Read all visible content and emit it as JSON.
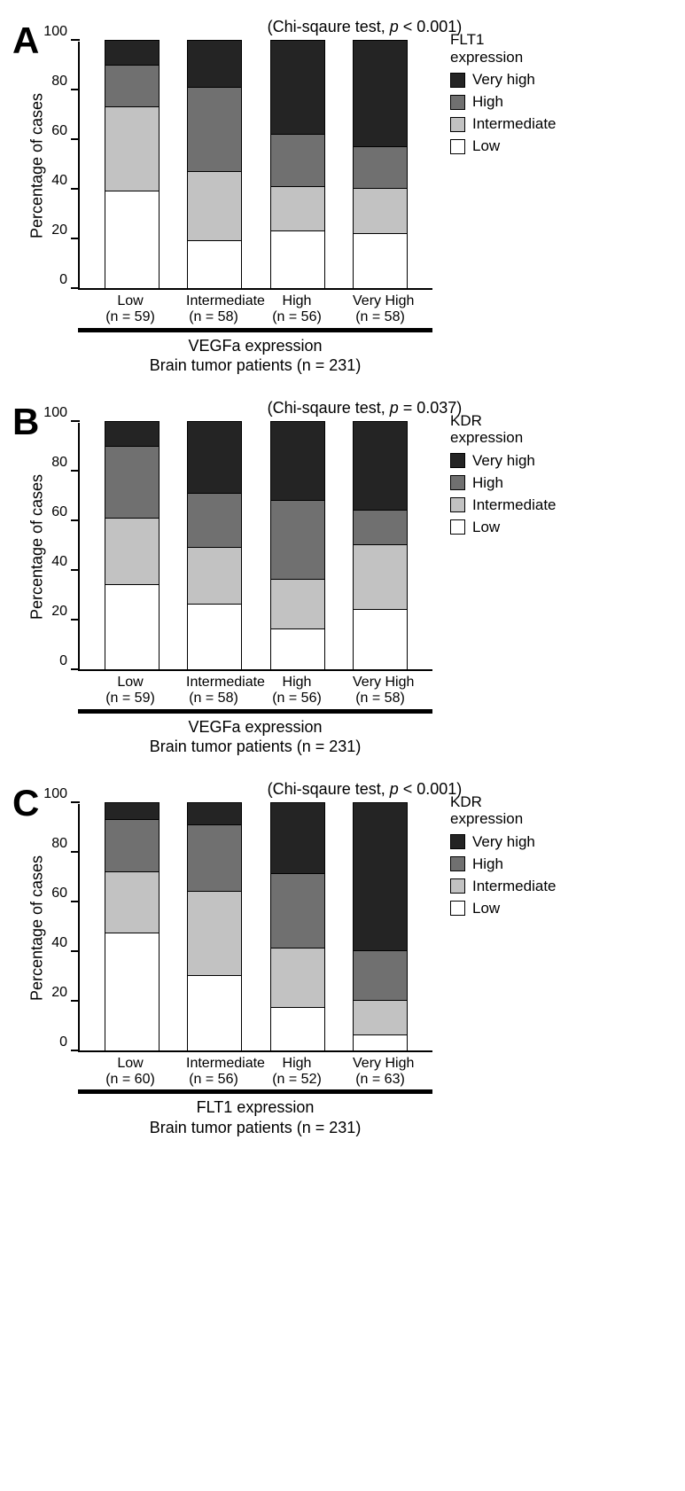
{
  "colors": {
    "very_high": "#242424",
    "high": "#707070",
    "intermediate": "#c2c2c2",
    "low": "#ffffff"
  },
  "yaxis": {
    "label": "Percentage of cases",
    "max": 100,
    "ticks": [
      0,
      20,
      40,
      60,
      80,
      100
    ]
  },
  "panels": [
    {
      "id": "A",
      "stat_prefix": "(Chi-sqaure test, ",
      "stat_p": "p",
      "stat_suffix": " < 0.001)",
      "legend_title_line1": "FLT1",
      "legend_title_line2": "expression",
      "xaxis_title_line1": "VEGFa expression",
      "xaxis_title_line2": "Brain tumor patients (n = 231)",
      "legend_items": [
        {
          "label": "Very high",
          "color": "#242424"
        },
        {
          "label": "High",
          "color": "#707070"
        },
        {
          "label": "Intermediate",
          "color": "#c2c2c2"
        },
        {
          "label": "Low",
          "color": "#ffffff"
        }
      ],
      "bars": [
        {
          "label_line1": "Low",
          "label_line2": "(n = 59)",
          "segments": [
            {
              "color": "#242424",
              "value": 10
            },
            {
              "color": "#707070",
              "value": 17
            },
            {
              "color": "#c2c2c2",
              "value": 34
            },
            {
              "color": "#ffffff",
              "value": 39
            }
          ]
        },
        {
          "label_line1": "Intermediate",
          "label_line2": "(n = 58)",
          "segments": [
            {
              "color": "#242424",
              "value": 19
            },
            {
              "color": "#707070",
              "value": 34
            },
            {
              "color": "#c2c2c2",
              "value": 28
            },
            {
              "color": "#ffffff",
              "value": 19
            }
          ]
        },
        {
          "label_line1": "High",
          "label_line2": "(n = 56)",
          "segments": [
            {
              "color": "#242424",
              "value": 38
            },
            {
              "color": "#707070",
              "value": 21
            },
            {
              "color": "#c2c2c2",
              "value": 18
            },
            {
              "color": "#ffffff",
              "value": 23
            }
          ]
        },
        {
          "label_line1": "Very High",
          "label_line2": "(n = 58)",
          "segments": [
            {
              "color": "#242424",
              "value": 43
            },
            {
              "color": "#707070",
              "value": 17
            },
            {
              "color": "#c2c2c2",
              "value": 18
            },
            {
              "color": "#ffffff",
              "value": 22
            }
          ]
        }
      ]
    },
    {
      "id": "B",
      "stat_prefix": "(Chi-sqaure test, ",
      "stat_p": "p",
      "stat_suffix": " = 0.037)",
      "legend_title_line1": "KDR",
      "legend_title_line2": "expression",
      "xaxis_title_line1": "VEGFa expression",
      "xaxis_title_line2": "Brain tumor patients (n = 231)",
      "legend_items": [
        {
          "label": "Very high",
          "color": "#242424"
        },
        {
          "label": "High",
          "color": "#707070"
        },
        {
          "label": "Intermediate",
          "color": "#c2c2c2"
        },
        {
          "label": "Low",
          "color": "#ffffff"
        }
      ],
      "bars": [
        {
          "label_line1": "Low",
          "label_line2": "(n = 59)",
          "segments": [
            {
              "color": "#242424",
              "value": 10
            },
            {
              "color": "#707070",
              "value": 29
            },
            {
              "color": "#c2c2c2",
              "value": 27
            },
            {
              "color": "#ffffff",
              "value": 34
            }
          ]
        },
        {
          "label_line1": "Intermediate",
          "label_line2": "(n = 58)",
          "segments": [
            {
              "color": "#242424",
              "value": 29
            },
            {
              "color": "#707070",
              "value": 22
            },
            {
              "color": "#c2c2c2",
              "value": 23
            },
            {
              "color": "#ffffff",
              "value": 26
            }
          ]
        },
        {
          "label_line1": "High",
          "label_line2": "(n = 56)",
          "segments": [
            {
              "color": "#242424",
              "value": 32
            },
            {
              "color": "#707070",
              "value": 32
            },
            {
              "color": "#c2c2c2",
              "value": 20
            },
            {
              "color": "#ffffff",
              "value": 16
            }
          ]
        },
        {
          "label_line1": "Very High",
          "label_line2": "(n = 58)",
          "segments": [
            {
              "color": "#242424",
              "value": 36
            },
            {
              "color": "#707070",
              "value": 14
            },
            {
              "color": "#c2c2c2",
              "value": 26
            },
            {
              "color": "#ffffff",
              "value": 24
            }
          ]
        }
      ]
    },
    {
      "id": "C",
      "stat_prefix": "(Chi-sqaure test, ",
      "stat_p": "p",
      "stat_suffix": " < 0.001)",
      "legend_title_line1": "KDR",
      "legend_title_line2": "expression",
      "xaxis_title_line1": "FLT1 expression",
      "xaxis_title_line2": "Brain tumor patients (n = 231)",
      "legend_items": [
        {
          "label": "Very high",
          "color": "#242424"
        },
        {
          "label": "High",
          "color": "#707070"
        },
        {
          "label": "Intermediate",
          "color": "#c2c2c2"
        },
        {
          "label": "Low",
          "color": "#ffffff"
        }
      ],
      "bars": [
        {
          "label_line1": "Low",
          "label_line2": "(n = 60)",
          "segments": [
            {
              "color": "#242424",
              "value": 7
            },
            {
              "color": "#707070",
              "value": 21
            },
            {
              "color": "#c2c2c2",
              "value": 25
            },
            {
              "color": "#ffffff",
              "value": 47
            }
          ]
        },
        {
          "label_line1": "Intermediate",
          "label_line2": "(n = 56)",
          "segments": [
            {
              "color": "#242424",
              "value": 9
            },
            {
              "color": "#707070",
              "value": 27
            },
            {
              "color": "#c2c2c2",
              "value": 34
            },
            {
              "color": "#ffffff",
              "value": 30
            }
          ]
        },
        {
          "label_line1": "High",
          "label_line2": "(n = 52)",
          "segments": [
            {
              "color": "#242424",
              "value": 29
            },
            {
              "color": "#707070",
              "value": 30
            },
            {
              "color": "#c2c2c2",
              "value": 24
            },
            {
              "color": "#ffffff",
              "value": 17
            }
          ]
        },
        {
          "label_line1": "Very High",
          "label_line2": "(n = 63)",
          "segments": [
            {
              "color": "#242424",
              "value": 60
            },
            {
              "color": "#707070",
              "value": 20
            },
            {
              "color": "#c2c2c2",
              "value": 14
            },
            {
              "color": "#ffffff",
              "value": 6
            }
          ]
        }
      ]
    }
  ]
}
